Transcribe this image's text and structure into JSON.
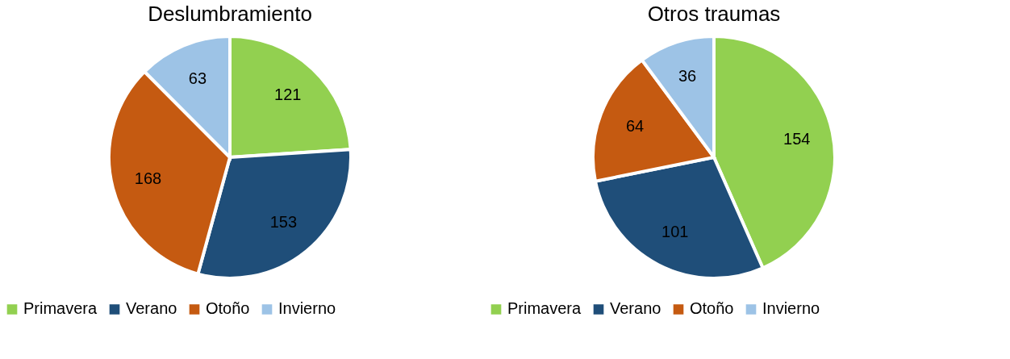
{
  "chart_data": [
    {
      "type": "pie",
      "title": "Deslumbramiento",
      "categories": [
        "Primavera",
        "Verano",
        "Otoño",
        "Invierno"
      ],
      "values": [
        121,
        153,
        168,
        63
      ],
      "colors": [
        "#92d050",
        "#1f4e79",
        "#c55a11",
        "#9dc3e6"
      ],
      "data_labels": true,
      "legend": "bottom"
    },
    {
      "type": "pie",
      "title": "Otros traumas",
      "categories": [
        "Primavera",
        "Verano",
        "Otoño",
        "Invierno"
      ],
      "values": [
        154,
        101,
        64,
        36
      ],
      "colors": [
        "#92d050",
        "#1f4e79",
        "#c55a11",
        "#9dc3e6"
      ],
      "data_labels": true,
      "legend": "bottom"
    }
  ]
}
